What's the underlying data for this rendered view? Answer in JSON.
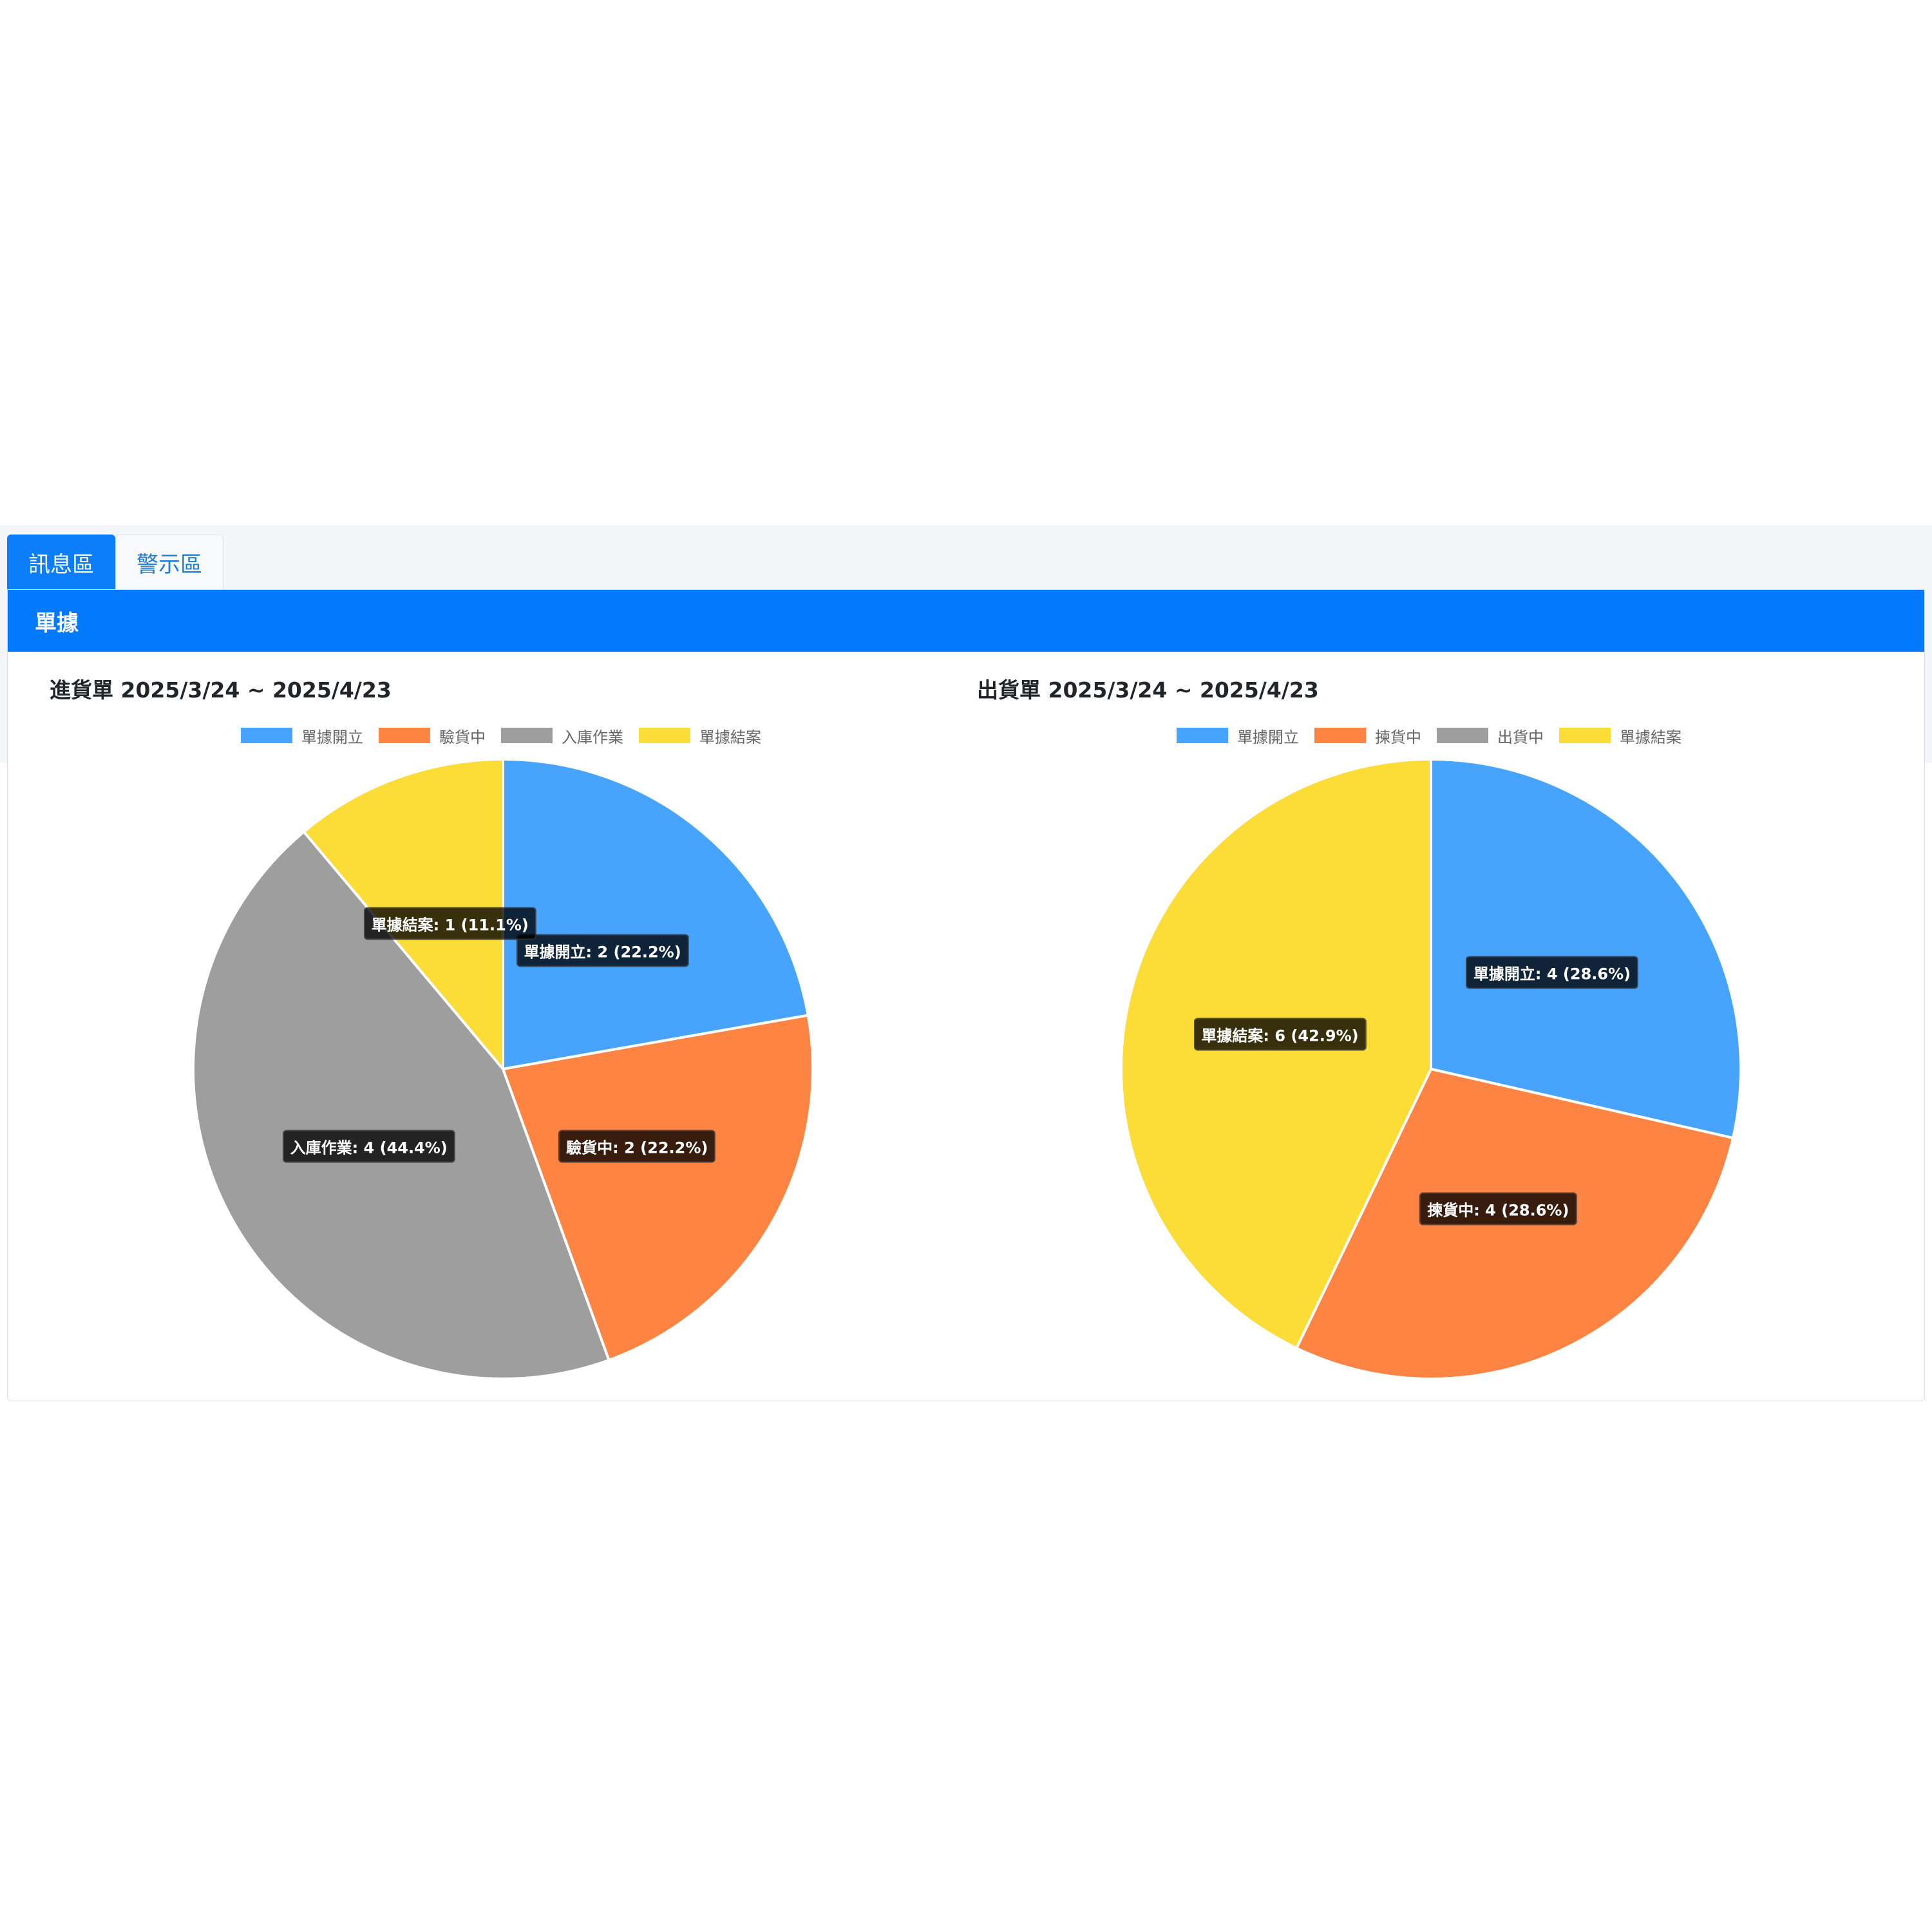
{
  "tabs": [
    {
      "label": "訊息區",
      "active": true
    },
    {
      "label": "警示區",
      "active": false
    }
  ],
  "card": {
    "header": "單據"
  },
  "colors": {
    "primary": "#0379fd",
    "blue": "#47a3fc",
    "orange": "#fe8443",
    "gray": "#9e9e9e",
    "yellow": "#fcdc37"
  },
  "chart_data": [
    {
      "type": "pie",
      "title": "進貨單 2025/3/24 ~ 2025/4/23",
      "legend": "top",
      "categories": [
        "單據開立",
        "驗貨中",
        "入庫作業",
        "單據結案"
      ],
      "values": [
        2,
        2,
        4,
        1
      ],
      "colors": [
        "#47a3fc",
        "#fe8443",
        "#9e9e9e",
        "#fcdc37"
      ],
      "data_labels": [
        "單據開立: 2 (22.2%)",
        "驗貨中: 2 (22.2%)",
        "入庫作業: 4 (44.4%)",
        "單據結案: 1 (11.1%)"
      ]
    },
    {
      "type": "pie",
      "title": "出貨單 2025/3/24 ~ 2025/4/23",
      "legend": "top",
      "categories": [
        "單據開立",
        "揀貨中",
        "出貨中",
        "單據結案"
      ],
      "values": [
        4,
        4,
        0,
        6
      ],
      "colors": [
        "#47a3fc",
        "#fe8443",
        "#9e9e9e",
        "#fcdc37"
      ],
      "data_labels": [
        "單據開立: 4 (28.6%)",
        "揀貨中: 4 (28.6%)",
        "",
        "單據結案: 6 (42.9%)"
      ]
    }
  ]
}
